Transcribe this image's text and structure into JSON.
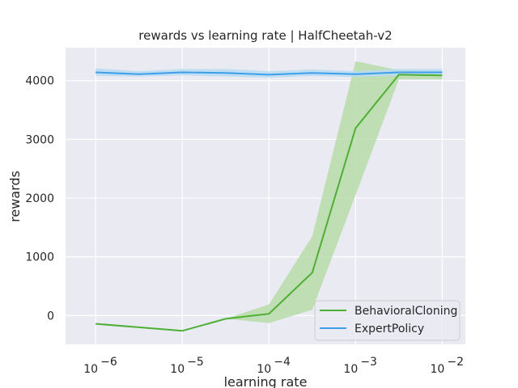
{
  "chart_data": {
    "type": "line",
    "title": "rewards vs learning rate | HalfCheetah-v2",
    "xlabel": "learning rate",
    "ylabel": "rewards",
    "xscale": "log",
    "xlim": [
      4.5e-07,
      0.0185
    ],
    "ylim": [
      -490,
      4560
    ],
    "xticks": [
      {
        "value": 1e-06,
        "base": "10",
        "exp": "−6"
      },
      {
        "value": 1e-05,
        "base": "10",
        "exp": "−5"
      },
      {
        "value": 0.0001,
        "base": "10",
        "exp": "−4"
      },
      {
        "value": 0.001,
        "base": "10",
        "exp": "−3"
      },
      {
        "value": 0.01,
        "base": "10",
        "exp": "−2"
      }
    ],
    "yticks": [
      0,
      1000,
      2000,
      3000,
      4000
    ],
    "grid": true,
    "background": "#eaeaf2",
    "legend_position": "lower-right",
    "x": [
      1e-06,
      3.16e-06,
      1e-05,
      3.16e-05,
      0.0001,
      0.000316,
      0.001,
      0.00316,
      0.01
    ],
    "series": [
      {
        "name": "BehavioralCloning",
        "color": "#4daf33",
        "fill_color": "#b7dca9",
        "values": [
          -140,
          -200,
          -260,
          -55,
          30,
          730,
          3190,
          4100,
          4090
        ],
        "lower": [
          -140,
          -200,
          -260,
          -55,
          -130,
          100,
          2050,
          4020,
          4020
        ],
        "upper": [
          -140,
          -200,
          -260,
          -55,
          190,
          1350,
          4330,
          4180,
          4160
        ]
      },
      {
        "name": "ExpertPolicy",
        "color": "#3f9ee8",
        "fill_color": "#b9dcf3",
        "values": [
          4140,
          4110,
          4140,
          4130,
          4100,
          4130,
          4110,
          4140,
          4140
        ],
        "lower": [
          4080,
          4070,
          4090,
          4070,
          4050,
          4080,
          4060,
          4080,
          4090
        ],
        "upper": [
          4210,
          4160,
          4200,
          4200,
          4160,
          4190,
          4160,
          4200,
          4200
        ]
      }
    ]
  }
}
